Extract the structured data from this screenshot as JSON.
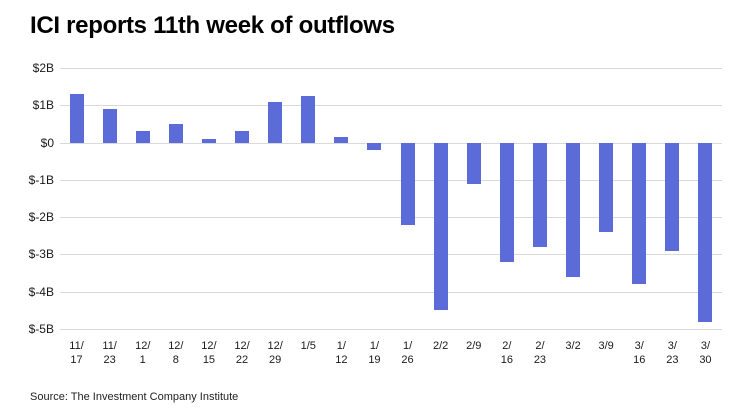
{
  "chart_data": {
    "type": "bar",
    "title": "ICI reports 11th week of outflows",
    "source": "Source: The Investment Company Institute",
    "categories": [
      "11/17",
      "11/23",
      "12/1",
      "12/8",
      "12/15",
      "12/22",
      "12/29",
      "1/5",
      "1/12",
      "1/19",
      "1/26",
      "2/2",
      "2/9",
      "2/16",
      "2/23",
      "3/2",
      "3/9",
      "3/16",
      "3/23",
      "3/30"
    ],
    "values": [
      1.3,
      0.9,
      0.3,
      0.5,
      0.1,
      0.3,
      1.1,
      1.25,
      0.15,
      -0.2,
      -2.2,
      -4.5,
      -1.1,
      -3.2,
      -2.8,
      -3.6,
      -2.4,
      -3.8,
      -2.9,
      -4.8
    ],
    "ylim": [
      -5,
      2
    ],
    "yticks": [
      {
        "value": 2,
        "label": "$2B"
      },
      {
        "value": 1,
        "label": "$1B"
      },
      {
        "value": 0,
        "label": "$0"
      },
      {
        "value": -1,
        "label": "$-1B"
      },
      {
        "value": -2,
        "label": "$-2B"
      },
      {
        "value": -3,
        "label": "$-3B"
      },
      {
        "value": -4,
        "label": "$-4B"
      },
      {
        "value": -5,
        "label": "$-5B"
      }
    ],
    "xlabel": "",
    "ylabel": "",
    "grid": true,
    "legend": false,
    "bar_color": "#5b6cd9"
  }
}
